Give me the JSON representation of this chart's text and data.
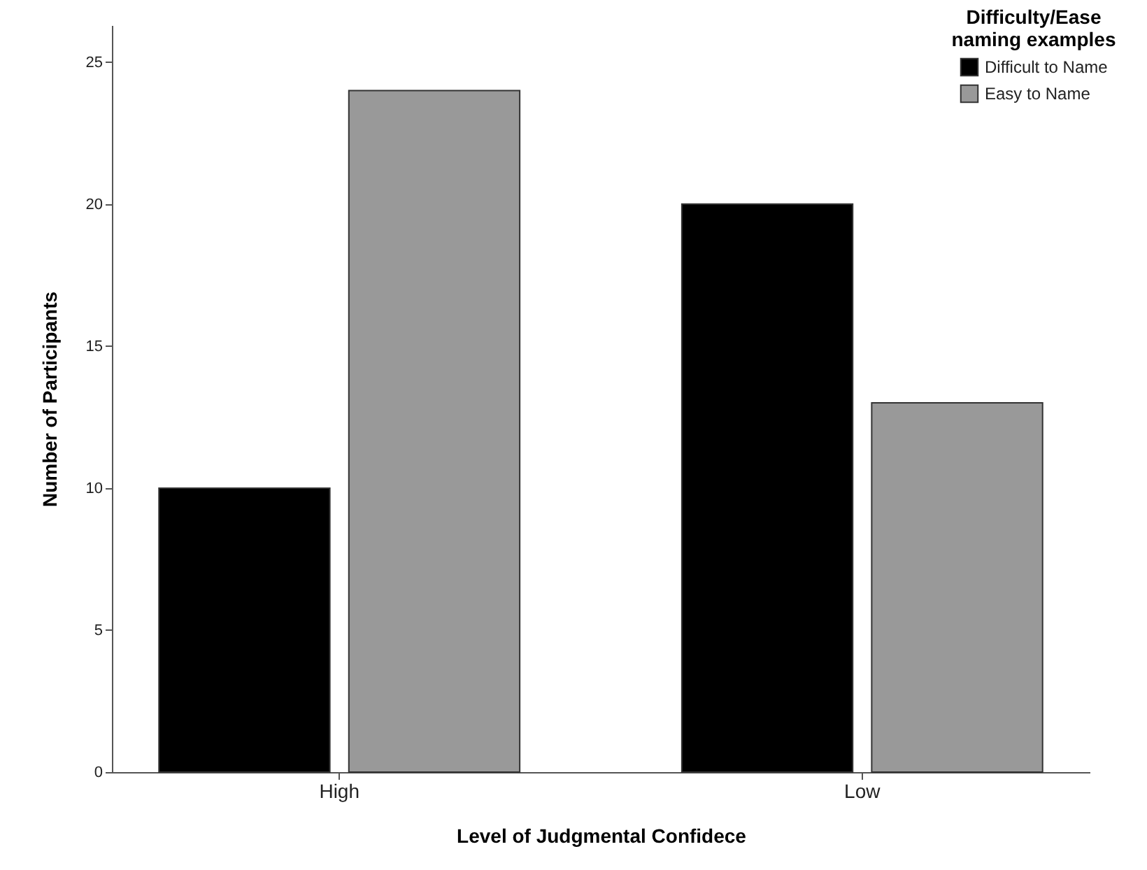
{
  "chart_data": {
    "type": "bar",
    "xlabel": "Level of Judgmental Confidece",
    "ylabel": "Number of Participants",
    "legend_title": "Difficulty/Ease naming examples",
    "categories": [
      "High",
      "Low"
    ],
    "series": [
      {
        "name": "Difficult to Name",
        "color": "#000000",
        "values": [
          10,
          20
        ]
      },
      {
        "name": "Easy to Name",
        "color": "#999999",
        "values": [
          24,
          13
        ]
      }
    ],
    "ylim": [
      0,
      26.3
    ],
    "yticks": [
      0,
      5,
      10,
      15,
      20,
      25
    ],
    "grid": false,
    "legend": "top right"
  }
}
